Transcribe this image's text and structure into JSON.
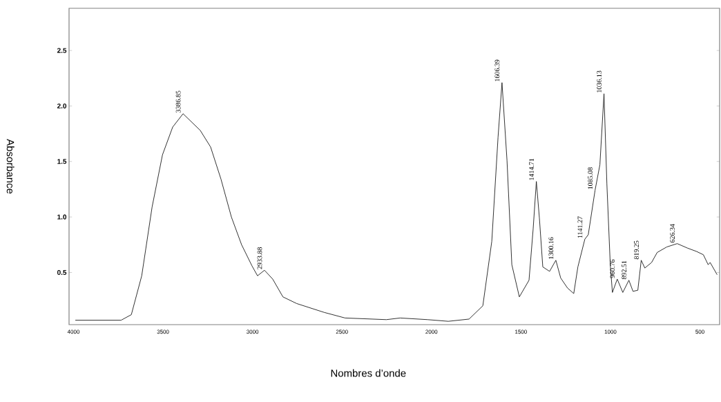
{
  "chart_data": {
    "type": "line",
    "xlabel": "Nombres d’onde",
    "ylabel": "Absorbance",
    "x": [
      3990,
      3734,
      3677,
      3619,
      3561,
      3503,
      3446,
      3388,
      3292,
      3234,
      3176,
      3118,
      3061,
      3003,
      2972,
      2933,
      2887,
      2830,
      2753,
      2599,
      2483,
      2252,
      2175,
      2021,
      1906,
      1790,
      1713,
      1663,
      1628,
      1606,
      1578,
      1551,
      1509,
      1455,
      1432,
      1414,
      1397,
      1378,
      1340,
      1305,
      1278,
      1240,
      1205,
      1182,
      1143,
      1124,
      1086,
      1059,
      1036,
      1020,
      1001,
      989,
      962,
      931,
      897,
      874,
      847,
      828,
      808,
      770,
      739,
      685,
      627,
      570,
      520,
      481,
      454,
      443,
      404
    ],
    "series": [
      {
        "color": "#1a1a1a",
        "values": [
          0.07,
          0.07,
          0.12,
          0.47,
          1.09,
          1.56,
          1.81,
          1.93,
          1.78,
          1.63,
          1.34,
          1.0,
          0.75,
          0.56,
          0.47,
          0.52,
          0.44,
          0.28,
          0.22,
          0.14,
          0.09,
          0.075,
          0.09,
          0.075,
          0.06,
          0.08,
          0.2,
          0.78,
          1.72,
          2.21,
          1.51,
          0.57,
          0.28,
          0.43,
          0.89,
          1.32,
          0.99,
          0.55,
          0.51,
          0.61,
          0.45,
          0.36,
          0.31,
          0.55,
          0.8,
          0.84,
          1.24,
          1.47,
          2.11,
          1.3,
          0.57,
          0.32,
          0.44,
          0.32,
          0.43,
          0.33,
          0.34,
          0.61,
          0.54,
          0.59,
          0.68,
          0.73,
          0.76,
          0.72,
          0.69,
          0.66,
          0.57,
          0.59,
          0.48
        ]
      }
    ],
    "xlim": [
      4025,
      390
    ],
    "ylim": [
      0.03,
      2.88
    ],
    "xticks": [
      4000,
      3500,
      3000,
      2500,
      2000,
      1500,
      1000,
      500
    ],
    "yticks": [
      0.5,
      {
        "value": 1,
        "label": "1.0"
      },
      1.5,
      {
        "value": 2,
        "label": "2.0"
      },
      2.5
    ],
    "grid": false,
    "marker": "none",
    "line_style": "solid",
    "annotations": [
      {
        "text": "3386.85",
        "x": 3388,
        "y": 1.93
      },
      {
        "text": "2933.88",
        "x": 2933,
        "y": 0.52
      },
      {
        "text": "1606.39",
        "x": 1606,
        "y": 2.21
      },
      {
        "text": "1414.71",
        "x": 1414,
        "y": 1.32
      },
      {
        "text": "1300.16",
        "x": 1305,
        "y": 0.61
      },
      {
        "text": "1141.27",
        "x": 1143,
        "y": 0.8
      },
      {
        "text": "1085.08",
        "x": 1086,
        "y": 1.24
      },
      {
        "text": "1036.13",
        "x": 1036,
        "y": 2.11
      },
      {
        "text": "960.76",
        "x": 962,
        "y": 0.44
      },
      {
        "text": "892.51",
        "x": 897,
        "y": 0.43
      },
      {
        "text": "819.25",
        "x": 828,
        "y": 0.61
      },
      {
        "text": "626.34",
        "x": 627,
        "y": 0.76
      }
    ]
  }
}
